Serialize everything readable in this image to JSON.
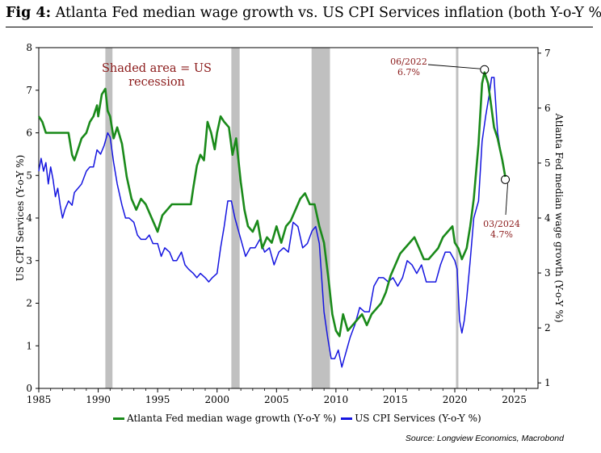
{
  "title": {
    "prefix": "Fig 4:",
    "text": "Atlanta Fed median wage growth vs. US CPI Services inflation (both Y-o-Y %)"
  },
  "source": "Source: Longview Economics, Macrobond",
  "colors": {
    "wage": "#1a8a1a",
    "cpi": "#1515e0",
    "recession": "#c0c0c0",
    "annotation": "#8b1a1a",
    "axis": "#000000"
  },
  "chart_data": {
    "type": "line",
    "x_ticks": [
      1985,
      1990,
      1995,
      2000,
      2005,
      2010,
      2015,
      2020,
      2025
    ],
    "xlim": [
      1985,
      2027
    ],
    "left_axis": {
      "label": "US CPI Services (Y-o-Y %)",
      "ylim": [
        0,
        8
      ],
      "ticks": [
        0,
        1,
        2,
        3,
        4,
        5,
        6,
        7,
        8
      ]
    },
    "right_axis": {
      "label": "Atlanta Fed median wage growth (Y-o-Y %)",
      "ylim": [
        0.9,
        7.1
      ],
      "ticks": [
        1,
        2,
        3,
        4,
        5,
        6,
        7
      ]
    },
    "recessions": [
      [
        1990.6,
        1991.2
      ],
      [
        2001.2,
        2001.9
      ],
      [
        2007.95,
        2009.5
      ],
      [
        2020.1,
        2020.3
      ]
    ],
    "recession_label": [
      "Shaded area = US",
      "recession"
    ],
    "series": [
      {
        "name": "Atlanta Fed median wage growth (Y-o-Y %)",
        "axis": "right",
        "color": "#1a8a1a",
        "x": [
          1985.0,
          1985.3,
          1985.6,
          1986.0,
          1986.5,
          1987.0,
          1987.5,
          1987.8,
          1988.0,
          1988.3,
          1988.6,
          1989.0,
          1989.3,
          1989.6,
          1989.9,
          1990.0,
          1990.3,
          1990.6,
          1990.8,
          1991.0,
          1991.3,
          1991.6,
          1992.0,
          1992.4,
          1992.8,
          1993.2,
          1993.6,
          1994.0,
          1994.4,
          1994.8,
          1995.0,
          1995.4,
          1995.8,
          1996.2,
          1996.6,
          1997.0,
          1997.4,
          1997.8,
          1998.0,
          1998.3,
          1998.6,
          1998.9,
          1999.2,
          1999.5,
          1999.8,
          2000.0,
          2000.3,
          2000.6,
          2001.0,
          2001.3,
          2001.6,
          2002.0,
          2002.3,
          2002.6,
          2003.0,
          2003.4,
          2003.8,
          2004.2,
          2004.6,
          2005.0,
          2005.4,
          2005.8,
          2006.2,
          2006.6,
          2007.0,
          2007.4,
          2007.8,
          2008.2,
          2008.6,
          2009.0,
          2009.4,
          2009.7,
          2010.0,
          2010.3,
          2010.6,
          2011.0,
          2011.4,
          2011.8,
          2012.2,
          2012.6,
          2013.0,
          2013.4,
          2013.8,
          2014.2,
          2014.6,
          2015.0,
          2015.4,
          2015.8,
          2016.2,
          2016.6,
          2017.0,
          2017.4,
          2017.8,
          2018.2,
          2018.6,
          2019.0,
          2019.4,
          2019.8,
          2020.0,
          2020.3,
          2020.6,
          2021.0,
          2021.3,
          2021.6,
          2022.0,
          2022.3,
          2022.5,
          2022.8,
          2023.0,
          2023.3,
          2023.6,
          2024.0,
          2024.25
        ],
        "y": [
          5.85,
          5.75,
          5.55,
          5.55,
          5.55,
          5.55,
          5.55,
          5.15,
          5.05,
          5.25,
          5.45,
          5.55,
          5.75,
          5.85,
          6.05,
          5.85,
          6.25,
          6.35,
          5.95,
          5.85,
          5.45,
          5.65,
          5.35,
          4.75,
          4.35,
          4.15,
          4.35,
          4.25,
          4.05,
          3.85,
          3.75,
          4.05,
          4.15,
          4.25,
          4.25,
          4.25,
          4.25,
          4.25,
          4.55,
          4.95,
          5.15,
          5.05,
          5.75,
          5.55,
          5.25,
          5.55,
          5.85,
          5.75,
          5.65,
          5.15,
          5.45,
          4.65,
          4.15,
          3.85,
          3.75,
          3.95,
          3.45,
          3.65,
          3.55,
          3.85,
          3.55,
          3.85,
          3.95,
          4.15,
          4.35,
          4.45,
          4.25,
          4.25,
          3.85,
          3.55,
          2.85,
          2.25,
          1.95,
          1.85,
          2.25,
          1.95,
          2.05,
          2.15,
          2.25,
          2.05,
          2.25,
          2.35,
          2.45,
          2.65,
          2.95,
          3.15,
          3.35,
          3.45,
          3.55,
          3.65,
          3.45,
          3.25,
          3.25,
          3.35,
          3.45,
          3.65,
          3.75,
          3.85,
          3.55,
          3.45,
          3.25,
          3.45,
          3.85,
          4.35,
          5.35,
          6.45,
          6.65,
          6.45,
          6.15,
          5.65,
          5.45,
          5.05,
          4.75
        ]
      },
      {
        "name": "US CPI Services (Y-o-Y %)",
        "axis": "left",
        "color": "#1515e0",
        "x": [
          1985.0,
          1985.2,
          1985.4,
          1985.6,
          1985.8,
          1986.0,
          1986.2,
          1986.4,
          1986.6,
          1986.8,
          1987.0,
          1987.2,
          1987.5,
          1987.8,
          1988.0,
          1988.3,
          1988.6,
          1989.0,
          1989.3,
          1989.6,
          1989.9,
          1990.2,
          1990.5,
          1990.8,
          1991.0,
          1991.3,
          1991.6,
          1992.0,
          1992.3,
          1992.6,
          1993.0,
          1993.3,
          1993.6,
          1994.0,
          1994.3,
          1994.6,
          1995.0,
          1995.3,
          1995.6,
          1996.0,
          1996.3,
          1996.6,
          1997.0,
          1997.3,
          1997.6,
          1998.0,
          1998.3,
          1998.6,
          1999.0,
          1999.3,
          1999.6,
          2000.0,
          2000.3,
          2000.6,
          2000.9,
          2001.2,
          2001.5,
          2001.8,
          2002.1,
          2002.4,
          2002.8,
          2003.2,
          2003.6,
          2004.0,
          2004.4,
          2004.8,
          2005.2,
          2005.6,
          2006.0,
          2006.4,
          2006.8,
          2007.2,
          2007.6,
          2008.0,
          2008.3,
          2008.6,
          2009.0,
          2009.3,
          2009.6,
          2009.9,
          2010.2,
          2010.5,
          2010.8,
          2011.2,
          2011.6,
          2012.0,
          2012.4,
          2012.8,
          2013.2,
          2013.6,
          2014.0,
          2014.4,
          2014.8,
          2015.2,
          2015.6,
          2016.0,
          2016.4,
          2016.8,
          2017.2,
          2017.6,
          2018.0,
          2018.4,
          2018.8,
          2019.2,
          2019.6,
          2020.0,
          2020.2,
          2020.4,
          2020.6,
          2020.8,
          2021.0,
          2021.3,
          2021.6,
          2022.0,
          2022.3,
          2022.6,
          2022.9,
          2023.1,
          2023.3,
          2023.6,
          2024.0,
          2024.25
        ],
        "y": [
          5.1,
          5.4,
          5.1,
          5.3,
          4.8,
          5.2,
          4.9,
          4.5,
          4.7,
          4.3,
          4.0,
          4.2,
          4.4,
          4.3,
          4.6,
          4.7,
          4.8,
          5.1,
          5.2,
          5.2,
          5.6,
          5.5,
          5.7,
          6.0,
          5.9,
          5.3,
          4.8,
          4.3,
          4.0,
          4.0,
          3.9,
          3.6,
          3.5,
          3.5,
          3.6,
          3.4,
          3.4,
          3.1,
          3.3,
          3.2,
          3.0,
          3.0,
          3.2,
          2.9,
          2.8,
          2.7,
          2.6,
          2.7,
          2.6,
          2.5,
          2.6,
          2.7,
          3.3,
          3.8,
          4.4,
          4.4,
          4.0,
          3.7,
          3.4,
          3.1,
          3.3,
          3.3,
          3.5,
          3.2,
          3.3,
          2.9,
          3.2,
          3.3,
          3.2,
          3.9,
          3.8,
          3.3,
          3.4,
          3.7,
          3.8,
          3.4,
          1.8,
          1.2,
          0.7,
          0.7,
          0.9,
          0.5,
          0.8,
          1.2,
          1.5,
          1.9,
          1.8,
          1.8,
          2.4,
          2.6,
          2.6,
          2.5,
          2.6,
          2.4,
          2.6,
          3.0,
          2.9,
          2.7,
          2.9,
          2.5,
          2.5,
          2.5,
          2.9,
          3.2,
          3.2,
          3.0,
          2.8,
          1.6,
          1.3,
          1.6,
          2.1,
          3.0,
          4.0,
          4.4,
          5.8,
          6.4,
          6.9,
          7.3,
          7.3,
          6.0,
          5.3,
          5.0
        ]
      }
    ],
    "annotations": [
      {
        "lines": [
          "06/2022",
          "6.7%"
        ],
        "x": 2022.5,
        "y": 6.7,
        "axis": "right"
      },
      {
        "lines": [
          "03/2024",
          "4.7%"
        ],
        "x": 2024.25,
        "y": 4.7,
        "axis": "right"
      }
    ]
  },
  "legend": [
    {
      "label": "Atlanta Fed median wage growth (Y-o-Y %)",
      "color": "#1a8a1a"
    },
    {
      "label": "US CPI Services (Y-o-Y %)",
      "color": "#1515e0"
    }
  ]
}
